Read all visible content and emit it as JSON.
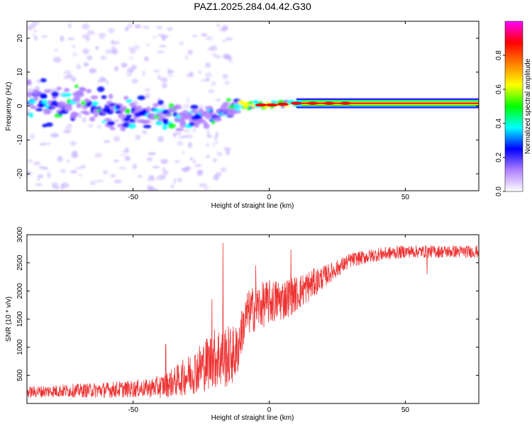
{
  "title": "PAZ1.2025.284.04.42.G30",
  "chart_data": [
    {
      "type": "heatmap",
      "title": "PAZ1.2025.284.04.42.G30",
      "xlabel": "Height of straight line (km)",
      "ylabel": "Frequency (Hz)",
      "xlim": [
        -89,
        77
      ],
      "ylim": [
        -25,
        25
      ],
      "xticks": [
        -50,
        0,
        50
      ],
      "yticks": [
        -20,
        -10,
        0,
        10,
        20
      ],
      "ridge": [
        [
          -89,
          0.8
        ],
        [
          -70,
          1.0
        ],
        [
          -60,
          -1.5
        ],
        [
          -50,
          -3.0
        ],
        [
          -40,
          -3.0
        ],
        [
          -30,
          -3.2
        ],
        [
          -22,
          -3.0
        ],
        [
          -17,
          -1.5
        ],
        [
          -12,
          0.0
        ],
        [
          -5,
          0.4
        ],
        [
          0,
          0.3
        ],
        [
          5,
          0.6
        ],
        [
          10,
          0.8
        ],
        [
          20,
          0.8
        ],
        [
          30,
          0.8
        ],
        [
          77,
          0.8
        ]
      ],
      "colorbar": {
        "label": "Normalized spectral amplitude",
        "range": [
          0.0,
          1.0
        ],
        "ticks": [
          0.0,
          0.2,
          0.4,
          0.6,
          0.8
        ],
        "colors": [
          "#ffffff",
          "#b080ff",
          "#0000ff",
          "#00ffff",
          "#00ff00",
          "#ffff00",
          "#ff8000",
          "#ff0000",
          "#ff00ff"
        ]
      }
    },
    {
      "type": "line",
      "xlabel": "Height of straight line (km)",
      "ylabel": "SNR (10 * v/v)",
      "xlim": [
        -89,
        77
      ],
      "ylim": [
        0,
        3000
      ],
      "xticks": [
        -50,
        0,
        50
      ],
      "yticks": [
        500,
        1000,
        1500,
        2000,
        2500,
        3000
      ],
      "color": "#ee3333",
      "series": [
        {
          "name": "SNR",
          "envelope": {
            "x": [
              -89,
              -80,
              -70,
              -60,
              -50,
              -45,
              -40,
              -35,
              -30,
              -25,
              -20,
              -17,
              -15,
              -12,
              -10,
              -8,
              -5,
              0,
              5,
              10,
              15,
              20,
              25,
              30,
              35,
              40,
              50,
              60,
              70,
              77
            ],
            "mean": [
              200,
              220,
              230,
              240,
              260,
              270,
              300,
              380,
              500,
              650,
              800,
              850,
              830,
              900,
              1300,
              1600,
              1700,
              1800,
              1850,
              1950,
              2100,
              2250,
              2400,
              2550,
              2600,
              2650,
              2700,
              2700,
              2700,
              2700
            ],
            "spread": [
              100,
              110,
              120,
              140,
              150,
              160,
              200,
              260,
              350,
              450,
              550,
              600,
              550,
              500,
              400,
              400,
              420,
              400,
              380,
              320,
              280,
              200,
              150,
              130,
              120,
              120,
              110,
              110,
              110,
              110
            ]
          },
          "peaks": [
            [
              -17,
              2850
            ],
            [
              -38,
              1050
            ],
            [
              8,
              2730
            ],
            [
              -21,
              1850
            ],
            [
              -5,
              2450
            ],
            [
              58,
              2300
            ]
          ]
        }
      ]
    }
  ]
}
